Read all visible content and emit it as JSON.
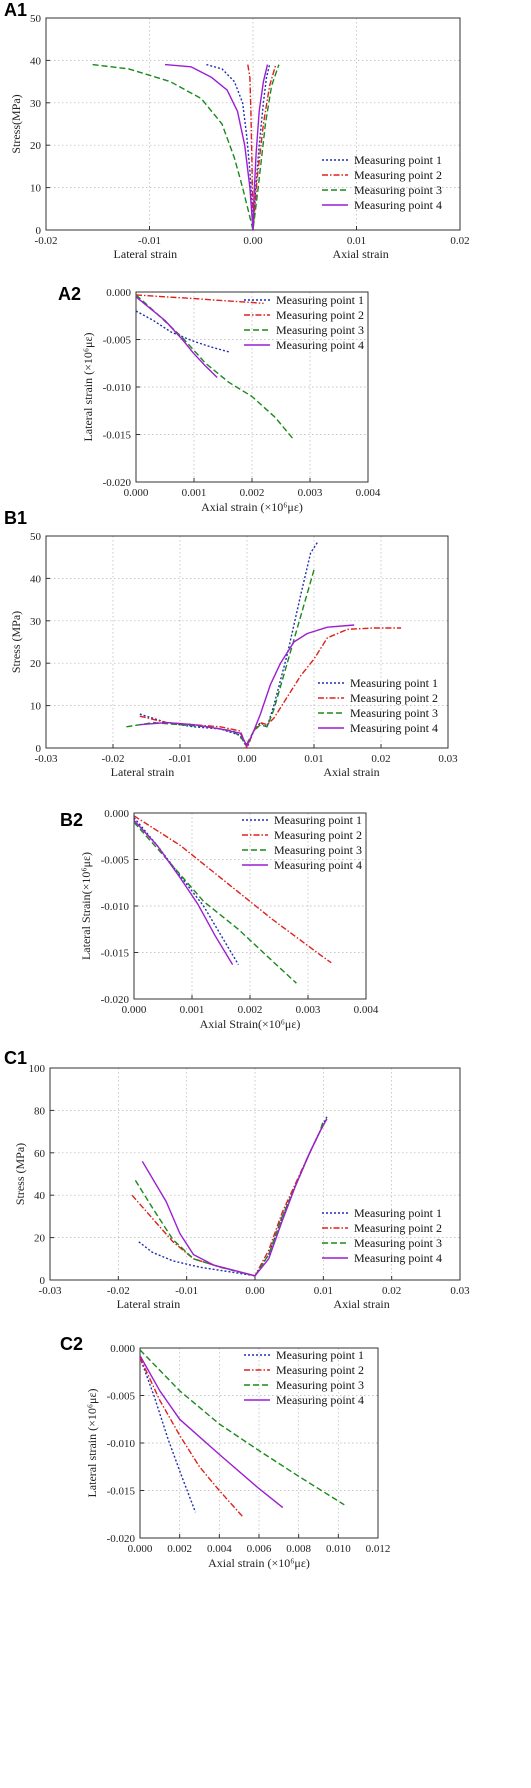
{
  "figure": {
    "colors": {
      "Measuring point 1": "#1f2fb0",
      "Measuring point 2": "#e0201b",
      "Measuring point 3": "#1a8a1a",
      "Measuring point 4": "#9c1ed2"
    },
    "dash_styles": {
      "Measuring point 1": "dotted",
      "Measuring point 2": "dash-dot",
      "Measuring point 3": "dashed",
      "Measuring point 4": "solid"
    }
  },
  "chart_data": [
    {
      "id": "A1",
      "panel_label": "A1",
      "type": "line",
      "xlim": [
        -0.02,
        0.02
      ],
      "ylim": [
        0,
        50
      ],
      "xticks": [
        -0.02,
        -0.01,
        0.0,
        0.01,
        0.02
      ],
      "xtick_labels": [
        "-0.02",
        "-0.01",
        "0.00",
        "0.01",
        "0.02"
      ],
      "yticks": [
        0,
        10,
        20,
        30,
        40,
        50
      ],
      "ytick_labels": [
        "0",
        "10",
        "20",
        "30",
        "40",
        "50"
      ],
      "ylabel": "Stress(MPa)",
      "xlabel_left": "Lateral strain",
      "xlabel_right": "Axial strain",
      "grid": true,
      "legend_position": "bottom-right",
      "series": [
        {
          "name": "Measuring point 1",
          "x": [
            -0.0045,
            -0.003,
            -0.0018,
            -0.001,
            -0.0006,
            -0.0003,
            -0.0001,
            0.0,
            0.0002,
            0.0006,
            0.001,
            0.0013,
            0.0016
          ],
          "y": [
            39,
            38,
            35,
            30,
            22,
            14,
            6,
            0,
            8,
            20,
            30,
            36,
            39
          ]
        },
        {
          "name": "Measuring point 2",
          "x": [
            -0.0005,
            -0.0003,
            -0.0002,
            -0.0001,
            0.0,
            0.0004,
            0.001,
            0.0016,
            0.0022
          ],
          "y": [
            39,
            36,
            28,
            15,
            0,
            12,
            25,
            34,
            39
          ]
        },
        {
          "name": "Measuring point 3",
          "x": [
            -0.0155,
            -0.012,
            -0.008,
            -0.005,
            -0.003,
            -0.0018,
            -0.001,
            -0.0004,
            0.0,
            0.0005,
            0.0012,
            0.0018,
            0.0025
          ],
          "y": [
            39,
            38,
            35,
            31,
            25,
            17,
            10,
            4,
            0,
            10,
            25,
            34,
            39
          ]
        },
        {
          "name": "Measuring point 4",
          "x": [
            -0.0085,
            -0.006,
            -0.004,
            -0.0025,
            -0.0015,
            -0.0008,
            -0.0003,
            0.0,
            0.0001,
            0.0003,
            0.0006,
            0.001,
            0.0014
          ],
          "y": [
            39,
            38.5,
            36,
            33,
            28,
            20,
            10,
            0,
            8,
            18,
            28,
            35,
            39
          ]
        }
      ]
    },
    {
      "id": "A2",
      "panel_label": "A2",
      "type": "line",
      "xlim": [
        0,
        0.004
      ],
      "ylim": [
        -0.02,
        0
      ],
      "xticks": [
        0,
        0.001,
        0.002,
        0.003,
        0.004
      ],
      "xtick_labels": [
        "0.000",
        "0.001",
        "0.002",
        "0.003",
        "0.004"
      ],
      "yticks": [
        0,
        -0.005,
        -0.01,
        -0.015,
        -0.02
      ],
      "ytick_labels": [
        "0.000",
        "-0.005",
        "-0.010",
        "-0.015",
        "-0.020"
      ],
      "xlabel": "Axial strain (×10⁶με)",
      "ylabel": "Lateral strain (×10⁶με)",
      "grid": true,
      "legend_position": "top-right",
      "series": [
        {
          "name": "Measuring point 1",
          "x": [
            0,
            0.0003,
            0.0006,
            0.001,
            0.0013,
            0.0016
          ],
          "y": [
            -0.002,
            -0.003,
            -0.0042,
            -0.0052,
            -0.0058,
            -0.0063
          ]
        },
        {
          "name": "Measuring point 2",
          "x": [
            0,
            0.0005,
            0.001,
            0.0015,
            0.002,
            0.0022
          ],
          "y": [
            -0.0003,
            -0.0005,
            -0.0007,
            -0.0009,
            -0.0011,
            -0.0012
          ]
        },
        {
          "name": "Measuring point 3",
          "x": [
            0,
            0.0004,
            0.0008,
            0.0012,
            0.0016,
            0.002,
            0.0024,
            0.0027
          ],
          "y": [
            -0.0003,
            -0.0025,
            -0.0048,
            -0.0075,
            -0.0095,
            -0.011,
            -0.0132,
            -0.0154
          ]
        },
        {
          "name": "Measuring point 4",
          "x": [
            0,
            0.0002,
            0.0005,
            0.0008,
            0.001,
            0.0012,
            0.0014
          ],
          "y": [
            -0.0005,
            -0.0015,
            -0.003,
            -0.005,
            -0.0065,
            -0.0078,
            -0.009
          ]
        }
      ]
    },
    {
      "id": "B1",
      "panel_label": "B1",
      "type": "line",
      "xlim": [
        -0.03,
        0.03
      ],
      "ylim": [
        0,
        50
      ],
      "xticks": [
        -0.03,
        -0.02,
        -0.01,
        0.0,
        0.01,
        0.02,
        0.03
      ],
      "xtick_labels": [
        "-0.03",
        "-0.02",
        "-0.01",
        "0.00",
        "0.01",
        "0.02",
        "0.03"
      ],
      "yticks": [
        0,
        10,
        20,
        30,
        40,
        50
      ],
      "ytick_labels": [
        "0",
        "10",
        "20",
        "30",
        "40",
        "50"
      ],
      "ylabel": "Stress (MPa)",
      "xlabel_left": "Lateral strain",
      "xlabel_right": "Axial strain",
      "grid": true,
      "legend_position": "bottom-right",
      "series": [
        {
          "name": "Measuring point 1",
          "x": [
            -0.016,
            -0.012,
            -0.008,
            -0.004,
            -0.001,
            0.0,
            0.001,
            0.002,
            0.003,
            0.004,
            0.006,
            0.008,
            0.0095,
            0.0105
          ],
          "y": [
            8,
            6,
            5,
            4.5,
            3,
            0,
            4,
            6,
            5,
            10,
            22,
            36,
            46,
            48.5
          ]
        },
        {
          "name": "Measuring point 2",
          "x": [
            -0.016,
            -0.012,
            -0.008,
            -0.004,
            -0.001,
            0.0,
            0.001,
            0.002,
            0.003,
            0.004,
            0.006,
            0.008,
            0.01,
            0.012,
            0.015,
            0.019,
            0.023
          ],
          "y": [
            7.5,
            6,
            5.5,
            5,
            4,
            0,
            4,
            6,
            5.5,
            7,
            12,
            17,
            21,
            26,
            28,
            28.3,
            28.3
          ]
        },
        {
          "name": "Measuring point 3",
          "x": [
            -0.018,
            -0.014,
            -0.01,
            -0.006,
            -0.002,
            0.0,
            0.001,
            0.002,
            0.003,
            0.004,
            0.006,
            0.008,
            0.01
          ],
          "y": [
            5,
            6,
            5.5,
            5,
            4,
            1,
            4,
            5.5,
            5,
            9,
            20,
            31,
            42
          ]
        },
        {
          "name": "Measuring point 4",
          "x": [
            -0.016,
            -0.012,
            -0.008,
            -0.004,
            -0.001,
            0.0,
            0.001,
            0.002,
            0.0035,
            0.005,
            0.007,
            0.009,
            0.012,
            0.016
          ],
          "y": [
            5.5,
            6,
            5.5,
            4.5,
            3.5,
            0.5,
            4,
            8,
            15,
            20,
            25,
            27,
            28.5,
            29
          ]
        }
      ]
    },
    {
      "id": "B2",
      "panel_label": "B2",
      "type": "line",
      "xlim": [
        0,
        0.004
      ],
      "ylim": [
        -0.02,
        0
      ],
      "xticks": [
        0,
        0.001,
        0.002,
        0.003,
        0.004
      ],
      "xtick_labels": [
        "0.000",
        "0.001",
        "0.002",
        "0.003",
        "0.004"
      ],
      "yticks": [
        0,
        -0.005,
        -0.01,
        -0.015,
        -0.02
      ],
      "ytick_labels": [
        "0.000",
        "-0.005",
        "-0.010",
        "-0.015",
        "-0.020"
      ],
      "xlabel": "Axial Strain(×10⁶με)",
      "ylabel": "Lateral Strain(×10⁶με)",
      "grid": true,
      "legend_position": "top-right",
      "series": [
        {
          "name": "Measuring point 1",
          "x": [
            0,
            0.0004,
            0.0008,
            0.0012,
            0.0016,
            0.0018
          ],
          "y": [
            -0.0005,
            -0.0035,
            -0.0068,
            -0.01,
            -0.0142,
            -0.0163
          ]
        },
        {
          "name": "Measuring point 2",
          "x": [
            0,
            0.0008,
            0.0016,
            0.0024,
            0.0032,
            0.0034
          ],
          "y": [
            -0.0003,
            -0.0035,
            -0.0075,
            -0.0115,
            -0.0152,
            -0.0161
          ]
        },
        {
          "name": "Measuring point 3",
          "x": [
            0,
            0.0006,
            0.0012,
            0.0018,
            0.0024,
            0.0028
          ],
          "y": [
            -0.001,
            -0.0052,
            -0.0095,
            -0.0125,
            -0.016,
            -0.0183
          ]
        },
        {
          "name": "Measuring point 4",
          "x": [
            0,
            0.0004,
            0.0008,
            0.0011,
            0.0014,
            0.0017
          ],
          "y": [
            -0.0008,
            -0.0035,
            -0.007,
            -0.0098,
            -0.0132,
            -0.0163
          ]
        }
      ]
    },
    {
      "id": "C1",
      "panel_label": "C1",
      "type": "line",
      "xlim": [
        -0.03,
        0.03
      ],
      "ylim": [
        0,
        100
      ],
      "xticks": [
        -0.03,
        -0.02,
        -0.01,
        0.0,
        0.01,
        0.02,
        0.03
      ],
      "xtick_labels": [
        "-0.03",
        "-0.02",
        "-0.01",
        "0.00",
        "0.01",
        "0.02",
        "0.03"
      ],
      "yticks": [
        0,
        20,
        40,
        60,
        80,
        100
      ],
      "ytick_labels": [
        "0",
        "20",
        "40",
        "60",
        "80",
        "100"
      ],
      "ylabel": "Stress (MPa)",
      "xlabel_left": "Lateral strain",
      "xlabel_right": "Axial strain",
      "grid": true,
      "legend_position": "bottom-right",
      "series": [
        {
          "name": "Measuring point 1",
          "x": [
            -0.017,
            -0.015,
            -0.012,
            -0.008,
            -0.004,
            0.0,
            0.002,
            0.004,
            0.006,
            0.008,
            0.0095,
            0.0105
          ],
          "y": [
            18,
            13,
            9,
            6,
            4,
            2,
            12,
            30,
            45,
            60,
            70,
            77
          ]
        },
        {
          "name": "Measuring point 2",
          "x": [
            -0.018,
            -0.015,
            -0.012,
            -0.009,
            -0.005,
            0.0,
            0.002,
            0.004,
            0.006,
            0.008,
            0.0095,
            0.0105
          ],
          "y": [
            40,
            29,
            18,
            10,
            6,
            2,
            14,
            32,
            46,
            60,
            70,
            76
          ]
        },
        {
          "name": "Measuring point 3",
          "x": [
            -0.0175,
            -0.015,
            -0.012,
            -0.009,
            -0.005,
            0.0,
            0.002,
            0.004,
            0.006,
            0.008,
            0.0095,
            0.01
          ],
          "y": [
            47,
            34,
            19,
            10,
            6,
            2,
            12,
            30,
            45,
            60,
            70,
            75
          ]
        },
        {
          "name": "Measuring point 4",
          "x": [
            -0.0165,
            -0.013,
            -0.011,
            -0.009,
            -0.006,
            0.0,
            0.002,
            0.004,
            0.006,
            0.008,
            0.0095,
            0.0105
          ],
          "y": [
            56,
            37,
            22,
            12,
            7,
            2,
            10,
            28,
            45,
            60,
            70,
            76
          ]
        }
      ]
    },
    {
      "id": "C2",
      "panel_label": "C2",
      "type": "line",
      "xlim": [
        0,
        0.012
      ],
      "ylim": [
        -0.02,
        0
      ],
      "xticks": [
        0,
        0.002,
        0.004,
        0.006,
        0.008,
        0.01,
        0.012
      ],
      "xtick_labels": [
        "0.000",
        "0.002",
        "0.004",
        "0.006",
        "0.008",
        "0.010",
        "0.012"
      ],
      "yticks": [
        0,
        -0.005,
        -0.01,
        -0.015,
        -0.02
      ],
      "ytick_labels": [
        "0.000",
        "-0.005",
        "-0.010",
        "-0.015",
        "-0.020"
      ],
      "xlabel": "Axial strain (×10⁶με)",
      "ylabel": "Lateral strain (×10⁶με)",
      "grid": true,
      "legend_position": "top-right",
      "series": [
        {
          "name": "Measuring point 1",
          "x": [
            0,
            0.0007,
            0.0014,
            0.0021,
            0.0028
          ],
          "y": [
            -0.001,
            -0.005,
            -0.0095,
            -0.0135,
            -0.0173
          ]
        },
        {
          "name": "Measuring point 2",
          "x": [
            0,
            0.001,
            0.002,
            0.003,
            0.004,
            0.0052
          ],
          "y": [
            -0.001,
            -0.0055,
            -0.0092,
            -0.0125,
            -0.015,
            -0.0178
          ]
        },
        {
          "name": "Measuring point 3",
          "x": [
            0,
            0.002,
            0.004,
            0.006,
            0.008,
            0.0103
          ],
          "y": [
            -0.0002,
            -0.0045,
            -0.008,
            -0.0108,
            -0.0135,
            -0.0165
          ]
        },
        {
          "name": "Measuring point 4",
          "x": [
            0,
            0.001,
            0.002,
            0.004,
            0.006,
            0.0072
          ],
          "y": [
            -0.0008,
            -0.0045,
            -0.0075,
            -0.0112,
            -0.0148,
            -0.0168
          ]
        }
      ]
    }
  ]
}
